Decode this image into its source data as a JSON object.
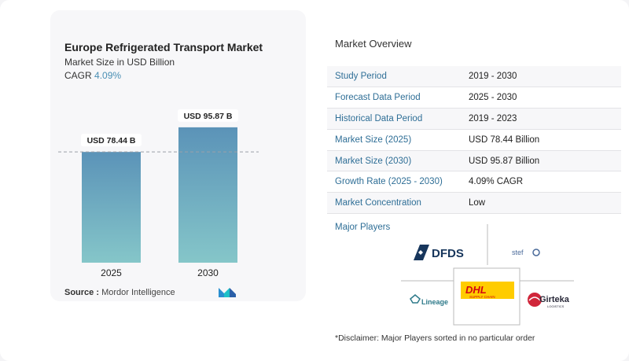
{
  "chart_data": {
    "type": "bar",
    "title": "Europe Refrigerated Transport Market",
    "subtitle": "Market Size in USD Billion",
    "cagr_label": "CAGR",
    "cagr_value": "4.09%",
    "categories": [
      "2025",
      "2030"
    ],
    "values": [
      78.44,
      95.87
    ],
    "data_labels": [
      "USD 78.44 B",
      "USD 95.87 B"
    ],
    "ylim": [
      0,
      100
    ],
    "bar_colors_top": [
      "#5b93b8",
      "#5b93b8"
    ],
    "bar_colors_bottom": [
      "#85c6c9",
      "#85c6c9"
    ],
    "reference_line": "dashed at 2025 value"
  },
  "source": {
    "label": "Source :",
    "value": "Mordor Intelligence"
  },
  "overview": {
    "title": "Market Overview",
    "rows": [
      {
        "label": "Study Period",
        "value": "2019 - 2030"
      },
      {
        "label": "Forecast Data Period",
        "value": "2025 - 2030"
      },
      {
        "label": "Historical Data Period",
        "value": "2019 - 2023"
      },
      {
        "label": "Market Size (2025)",
        "value": "USD 78.44 Billion"
      },
      {
        "label": "Market Size (2030)",
        "value": "USD 95.87 Billion"
      },
      {
        "label": "Growth Rate (2025 - 2030)",
        "value": "4.09% CAGR"
      },
      {
        "label": "Market Concentration",
        "value": "Low"
      }
    ]
  },
  "players": {
    "title": "Major Players",
    "items": [
      "DFDS",
      "stef",
      "DHL",
      "SUPPLY CHAIN",
      "Lineage",
      "Girteka",
      "LOGISTICS"
    ]
  },
  "disclaimer": "*Disclaimer: Major Players sorted in no particular order"
}
